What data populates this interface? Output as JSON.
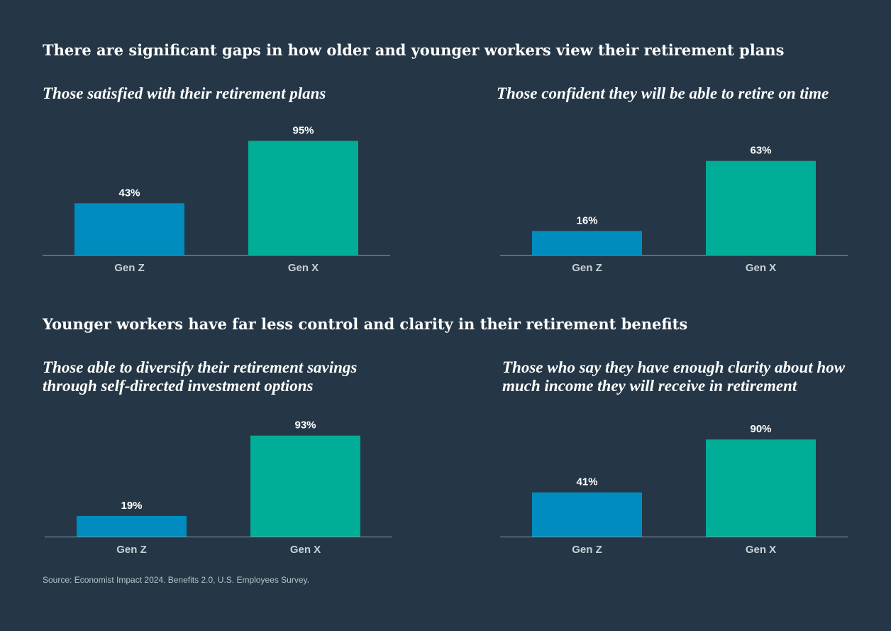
{
  "sections": [
    {
      "heading": "There are significant gaps in how older and younger workers view their retirement plans"
    },
    {
      "heading": "Younger workers have far less control and clarity in their retirement benefits"
    }
  ],
  "colors": {
    "background": "#253746",
    "gen_z": "#008cbf",
    "gen_x": "#00ad97",
    "axis": "#8d99a4"
  },
  "chart_data": [
    {
      "type": "bar",
      "title": "Those satisfied with their retirement plans",
      "categories": [
        "Gen Z",
        "Gen X"
      ],
      "values": [
        43,
        95
      ],
      "value_labels": [
        "43%",
        "95%"
      ],
      "ylim": [
        0,
        100
      ]
    },
    {
      "type": "bar",
      "title": "Those confident they will be able to retire on time",
      "categories": [
        "Gen Z",
        "Gen X"
      ],
      "values": [
        16,
        63
      ],
      "value_labels": [
        "16%",
        "63%"
      ],
      "ylim": [
        0,
        100
      ]
    },
    {
      "type": "bar",
      "title": "Those able to diversify their retirement savings through self-directed investment options",
      "categories": [
        "Gen Z",
        "Gen X"
      ],
      "values": [
        19,
        93
      ],
      "value_labels": [
        "19%",
        "93%"
      ],
      "ylim": [
        0,
        100
      ]
    },
    {
      "type": "bar",
      "title": "Those who say they have enough clarity about how much income they will receive in retirement",
      "categories": [
        "Gen Z",
        "Gen X"
      ],
      "values": [
        41,
        90
      ],
      "value_labels": [
        "41%",
        "90%"
      ],
      "ylim": [
        0,
        100
      ]
    }
  ],
  "source": "Source: Economist Impact 2024. Benefits 2.0, U.S. Employees Survey."
}
